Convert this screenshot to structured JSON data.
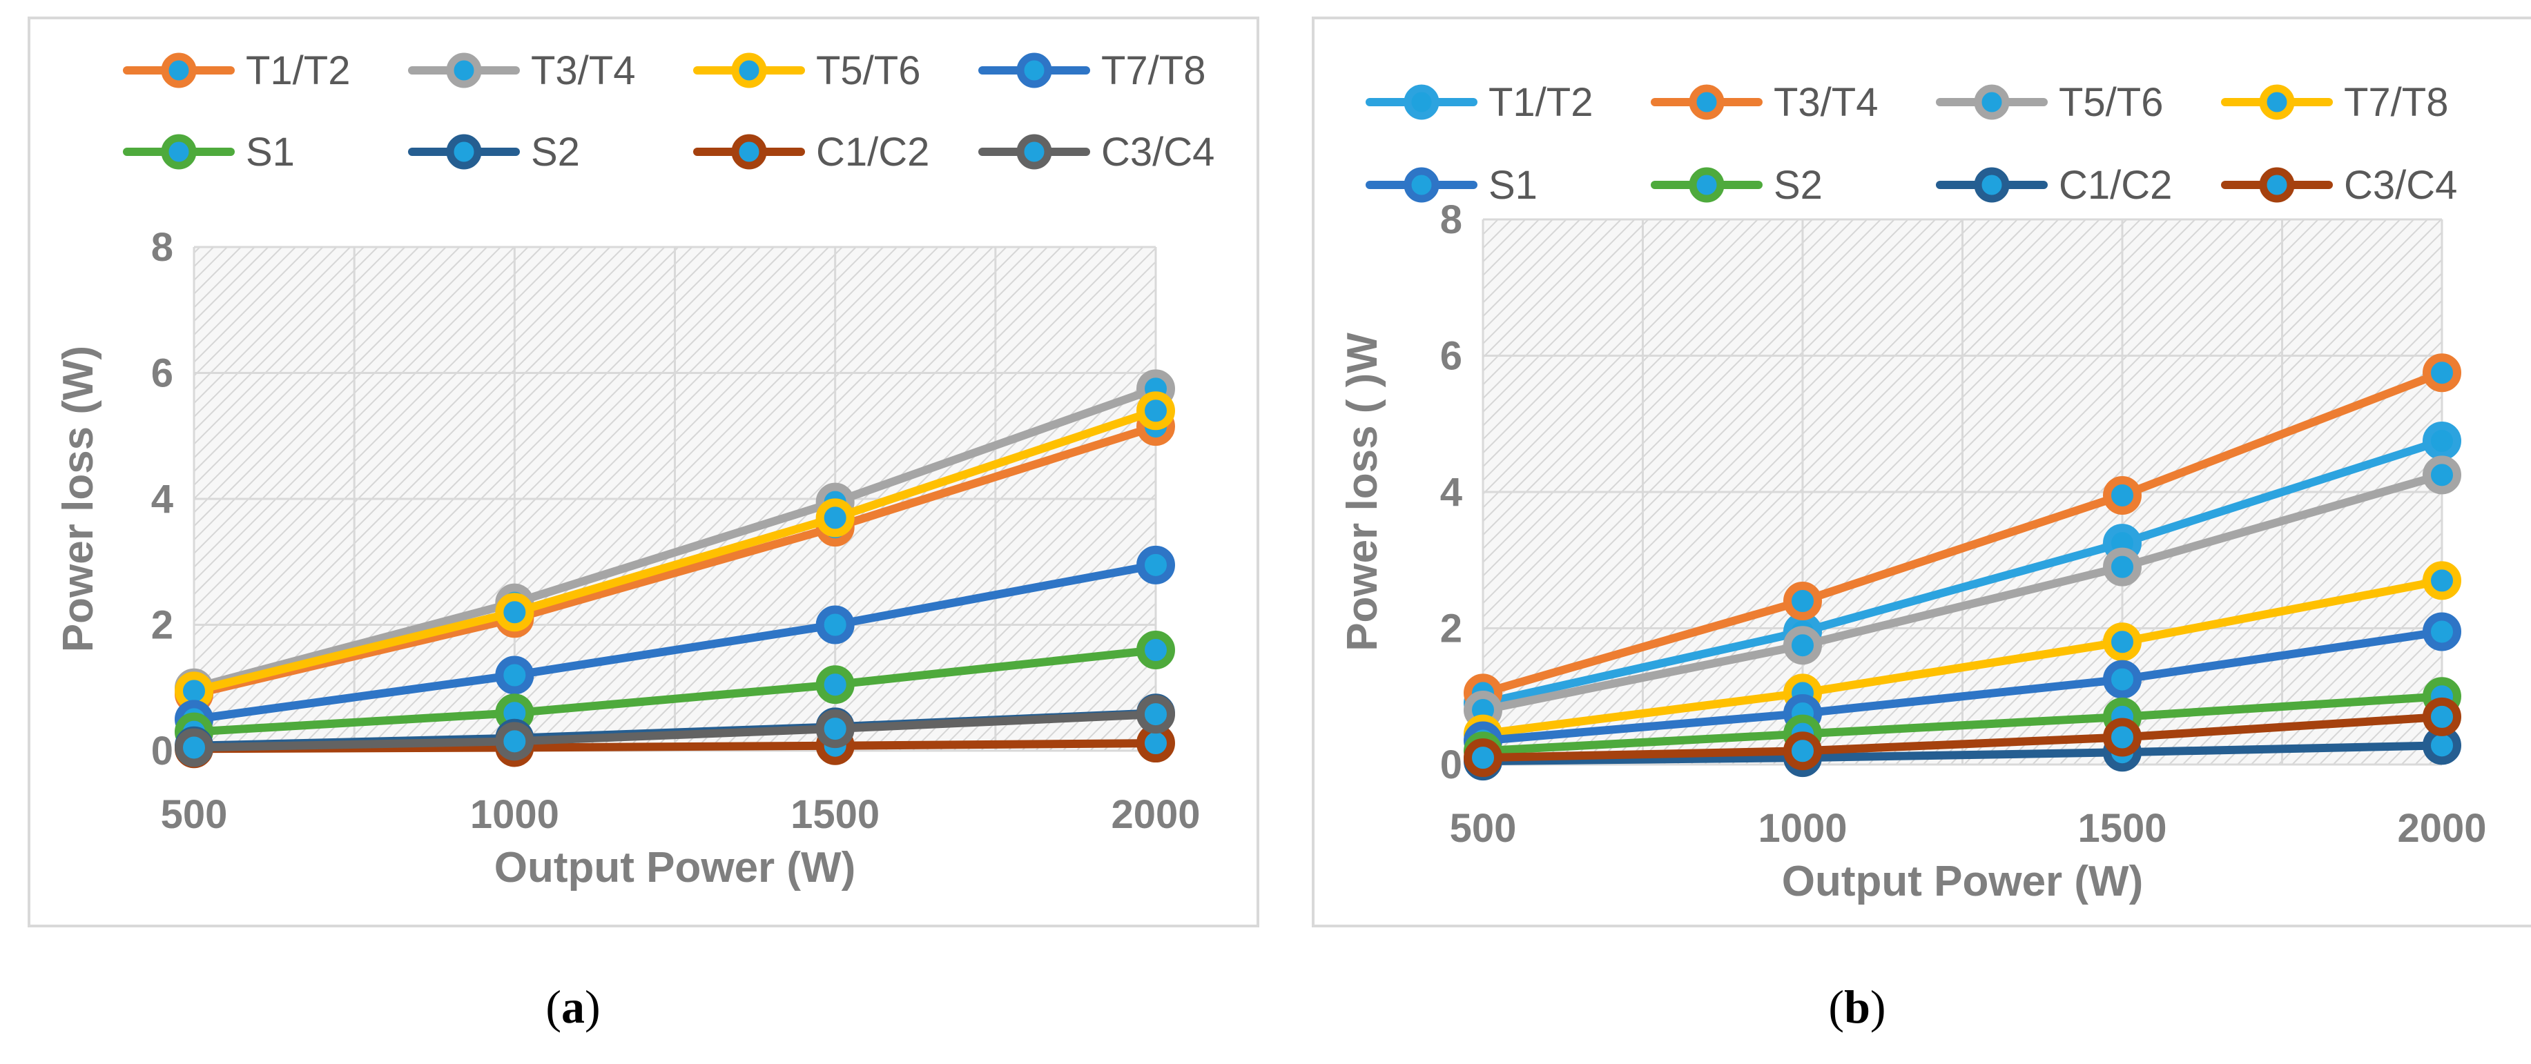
{
  "chart_data": [
    {
      "type": "line",
      "panel_label": "a",
      "title": "",
      "xlabel": "Output Power (W)",
      "ylabel": "Power loss (W)",
      "x": [
        500,
        1000,
        1500,
        2000
      ],
      "ylim": [
        0,
        8
      ],
      "yticks": [
        0,
        2,
        4,
        6,
        8
      ],
      "grid": true,
      "legend_position": "top",
      "legend_columns": 4,
      "series": [
        {
          "name": "T1/T2",
          "color": "#ED7D31",
          "values": [
            0.9,
            2.1,
            3.55,
            5.15
          ]
        },
        {
          "name": "T3/T4",
          "color": "#A5A5A5",
          "values": [
            1.0,
            2.35,
            3.95,
            5.75
          ]
        },
        {
          "name": "T5/T6",
          "color": "#FFC000",
          "values": [
            0.95,
            2.2,
            3.7,
            5.4
          ]
        },
        {
          "name": "T7/T8",
          "color": "#2E75C6",
          "values": [
            0.5,
            1.2,
            2.0,
            2.95
          ]
        },
        {
          "name": "S1",
          "color": "#4EAA3C",
          "values": [
            0.3,
            0.6,
            1.05,
            1.6
          ]
        },
        {
          "name": "S2",
          "color": "#255E91",
          "values": [
            0.08,
            0.2,
            0.38,
            0.6
          ]
        },
        {
          "name": "C1/C2",
          "color": "#A5410E",
          "values": [
            0.03,
            0.05,
            0.08,
            0.12
          ]
        },
        {
          "name": "C3/C4",
          "color": "#636363",
          "values": [
            0.05,
            0.15,
            0.35,
            0.58
          ]
        }
      ],
      "marker_fill": "#1FA2DE"
    },
    {
      "type": "line",
      "panel_label": "b",
      "title": "",
      "xlabel": "Output Power (W)",
      "ylabel": "Power loss ( )W",
      "x": [
        500,
        1000,
        1500,
        2000
      ],
      "ylim": [
        0,
        8
      ],
      "yticks": [
        0,
        2,
        4,
        6,
        8
      ],
      "grid": true,
      "legend_position": "top",
      "legend_columns": 4,
      "series": [
        {
          "name": "T1/T2",
          "color": "#2CA3DF",
          "values": [
            0.9,
            1.95,
            3.25,
            4.75
          ]
        },
        {
          "name": "T3/T4",
          "color": "#ED7D31",
          "values": [
            1.05,
            2.4,
            3.95,
            5.75
          ]
        },
        {
          "name": "T5/T6",
          "color": "#A5A5A5",
          "values": [
            0.8,
            1.75,
            2.9,
            4.25
          ]
        },
        {
          "name": "T7/T8",
          "color": "#FFC000",
          "values": [
            0.45,
            1.05,
            1.8,
            2.7
          ]
        },
        {
          "name": "S1",
          "color": "#2E75C6",
          "values": [
            0.35,
            0.75,
            1.25,
            1.95
          ]
        },
        {
          "name": "S2",
          "color": "#4EAA3C",
          "values": [
            0.2,
            0.45,
            0.7,
            1.0
          ]
        },
        {
          "name": "C1/C2",
          "color": "#255E91",
          "values": [
            0.05,
            0.1,
            0.18,
            0.28
          ]
        },
        {
          "name": "C3/C4",
          "color": "#A5410E",
          "values": [
            0.1,
            0.2,
            0.4,
            0.7
          ]
        }
      ],
      "marker_fill": "#1FA2DE"
    }
  ],
  "captions": {
    "a": "a",
    "b": "b"
  }
}
